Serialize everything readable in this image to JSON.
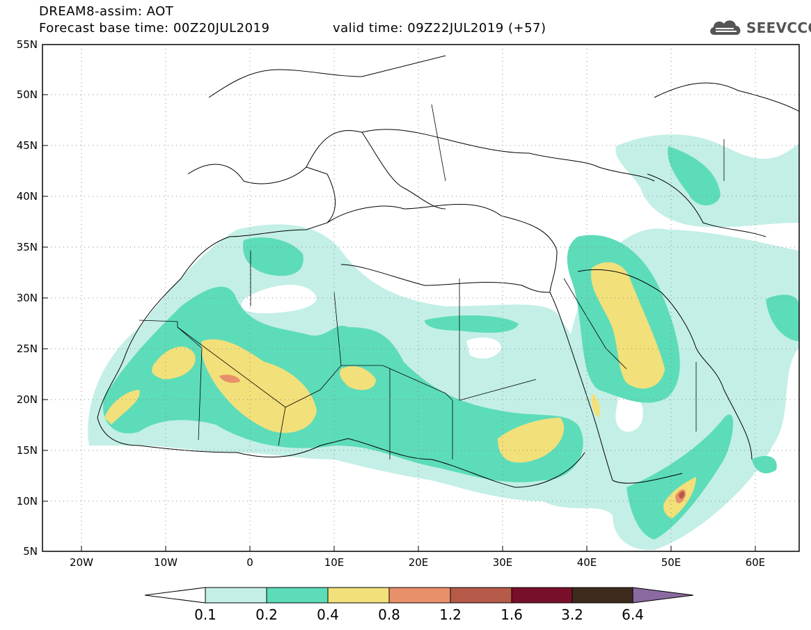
{
  "header": {
    "line1": "DREAM8-assim: AOT",
    "line2_base": "Forecast base time: 00Z20JUL2019",
    "line2_valid": "valid time: 09Z22JUL2019 (+57)",
    "logo_text": "SEEVCCC"
  },
  "map": {
    "lon_range": [
      -25,
      65
    ],
    "lat_range": [
      5,
      55
    ],
    "lat_labels": [
      "55N",
      "50N",
      "45N",
      "40N",
      "35N",
      "30N",
      "25N",
      "20N",
      "15N",
      "10N",
      "5N"
    ],
    "lon_labels": [
      "20W",
      "10W",
      "0",
      "10E",
      "20E",
      "30E",
      "40E",
      "50E",
      "60E"
    ],
    "gridlines": "dotted"
  },
  "colorbar": {
    "labels": [
      "0.1",
      "0.2",
      "0.4",
      "0.8",
      "1.2",
      "1.6",
      "3.2",
      "6.4"
    ],
    "colors": [
      "#c3efe6",
      "#5ddcb9",
      "#f2e07a",
      "#e8906a",
      "#b65a4a",
      "#780f2a",
      "#3e2b1d"
    ],
    "under_color": "#ffffff",
    "over_color": "#8a6aa0"
  }
}
